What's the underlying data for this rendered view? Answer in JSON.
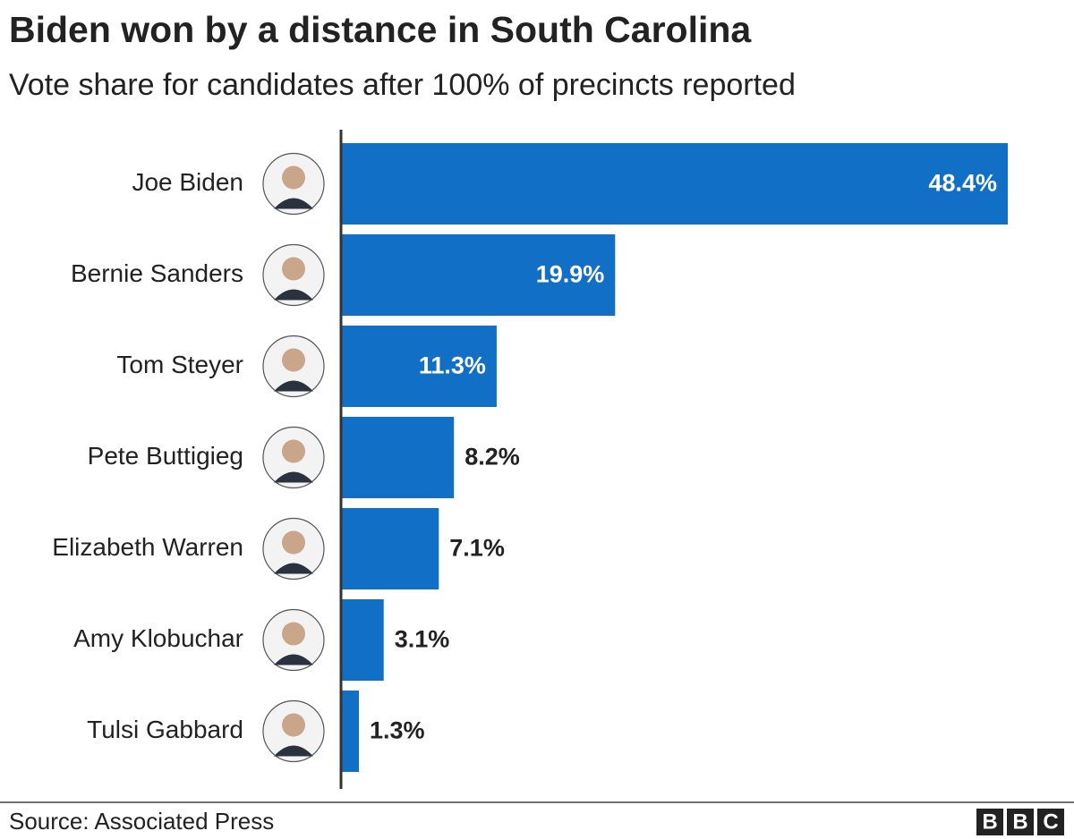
{
  "chart_data": {
    "type": "bar",
    "orientation": "horizontal",
    "title": "Biden won by a distance in South Carolina",
    "subtitle": "Vote share for candidates after 100% of precincts reported",
    "categories": [
      "Joe Biden",
      "Bernie Sanders",
      "Tom Steyer",
      "Pete Buttigieg",
      "Elizabeth Warren",
      "Amy Klobuchar",
      "Tulsi Gabbard"
    ],
    "values": [
      48.4,
      19.9,
      11.3,
      8.2,
      7.1,
      3.1,
      1.3
    ],
    "value_labels": [
      "48.4%",
      "19.9%",
      "11.3%",
      "8.2%",
      "7.1%",
      "3.1%",
      "1.3%"
    ],
    "color": "#1170c6",
    "source": "Source: Associated Press",
    "logo": [
      "B",
      "B",
      "C"
    ]
  }
}
